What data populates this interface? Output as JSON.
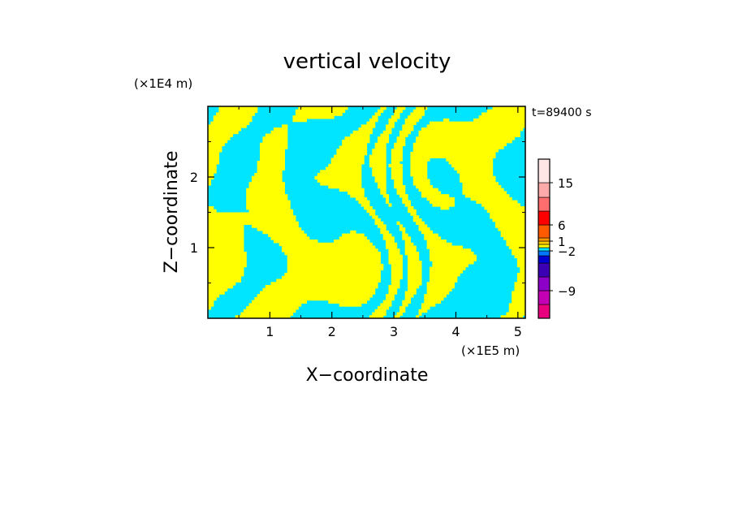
{
  "chart_data": {
    "type": "heatmap",
    "title": "vertical velocity",
    "xlabel": "X−coordinate",
    "ylabel": "Z−coordinate",
    "x_scale_label": "(×1E5 m)",
    "y_scale_label": "(×1E4 m)",
    "time_label": "t=89400 s",
    "xlim": [
      0,
      5.12
    ],
    "ylim": [
      0,
      3.0
    ],
    "x_ticks": [
      1,
      2,
      3,
      4,
      5
    ],
    "x_tick_labels": [
      "1",
      "2",
      "3",
      "4",
      "5"
    ],
    "y_ticks": [
      1,
      2
    ],
    "y_tick_labels": [
      "1",
      "2"
    ],
    "field_colors": {
      "positive": "#ffff00",
      "negative": "#00e5ff"
    },
    "colorbar": {
      "levels": [
        {
          "color": "#e8007e"
        },
        {
          "color": "#c400b4"
        },
        {
          "color": "#8c00c8"
        },
        {
          "color": "#3c00b4"
        },
        {
          "color": "#0000d2"
        },
        {
          "color": "#0078ff"
        },
        {
          "color": "#00e5ff"
        },
        {
          "color": "#ffff00"
        },
        {
          "color": "#ffc800"
        },
        {
          "color": "#ff9600"
        },
        {
          "color": "#ff5a00"
        },
        {
          "color": "#ff0000"
        },
        {
          "color": "#ff6e6e"
        },
        {
          "color": "#ffaaaa"
        },
        {
          "color": "#ffe6e6"
        }
      ],
      "tick_labels": [
        {
          "label": "15",
          "level_index": 13
        },
        {
          "label": "6",
          "level_index": 10
        },
        {
          "label": "1",
          "level_index": 8
        },
        {
          "label": "−2",
          "level_index": 5
        },
        {
          "label": "−9",
          "level_index": 1
        }
      ]
    }
  }
}
